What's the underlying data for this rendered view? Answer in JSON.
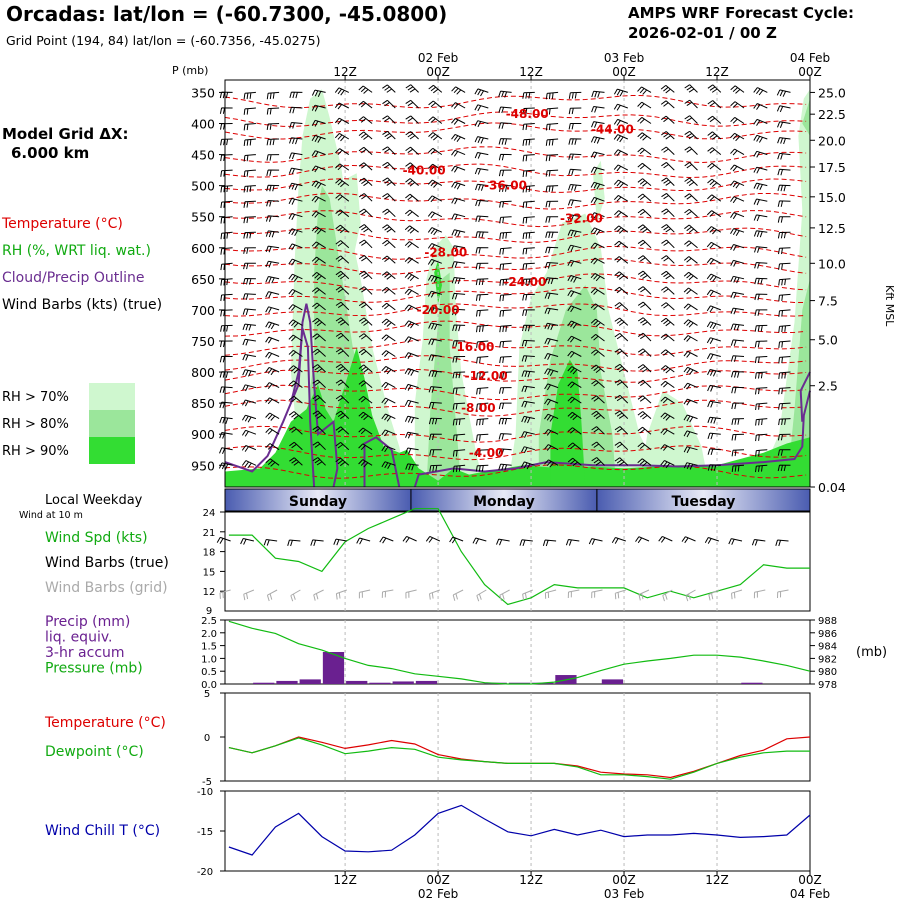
{
  "header": {
    "station": "Orcadas:",
    "latlon_label": "lat/lon = (-60.7300, -45.0800)",
    "grid_point": "Grid Point (194, 84) lat/lon = (-60.7356, -45.0275)",
    "cycle_label": "AMPS WRF Forecast Cycle:",
    "cycle_value": "2026-02-01 / 00  Z"
  },
  "left_panel": {
    "grid_spacing_label": "Model Grid ΔX:",
    "grid_spacing_value": "6.000 km",
    "legend_temperature": "Temperature (°C)",
    "legend_rh": "RH (%, WRT liq. wat.)",
    "legend_cloud": "Cloud/Precip Outline",
    "legend_wind": "Wind Barbs (kts) (true)",
    "rh_levels": [
      "RH > 70%",
      "RH > 80%",
      "RH > 90%"
    ]
  },
  "colors": {
    "rh70": "#cff7cf",
    "rh80": "#9be69b",
    "rh90": "#33dd33",
    "temperature": "#dd0000",
    "cloud_outline": "#6a2d90",
    "wind_speed": "#11bb11",
    "pressure": "#11bb11",
    "precip": "#6a2090",
    "dewpoint": "#11bb11",
    "wind_chill": "#0000aa",
    "grid_barbs": "#aaaaaa",
    "day_bar": "#8090c8"
  },
  "chart_data": [
    {
      "type": "heatmap",
      "title": "",
      "ylabel_left": "P (mb)",
      "ylabel_right": "Kft MSL",
      "pressure_ticks": [
        350,
        400,
        450,
        500,
        550,
        600,
        650,
        700,
        750,
        800,
        850,
        900,
        950
      ],
      "ylim": [
        330,
        985
      ],
      "height_ticks": [
        {
          "label": "25.0",
          "p": 350
        },
        {
          "label": "22.5",
          "p": 385
        },
        {
          "label": "20.0",
          "p": 427
        },
        {
          "label": "17.5",
          "p": 470
        },
        {
          "label": "15.0",
          "p": 518
        },
        {
          "label": "12.5",
          "p": 568
        },
        {
          "label": "10.0",
          "p": 625
        },
        {
          "label": "7.5",
          "p": 685
        },
        {
          "label": "5.0",
          "p": 748
        },
        {
          "label": "2.5",
          "p": 822
        },
        {
          "label": "0.04",
          "p": 985
        }
      ],
      "time_hours": [
        0,
        6,
        12,
        18,
        24,
        30,
        36,
        42,
        48,
        54,
        60,
        66,
        72
      ],
      "time_range_hours": [
        -3.5,
        72
      ],
      "top_time_labels": [
        {
          "hour": 12,
          "label": "12Z",
          "date": ""
        },
        {
          "hour": 24,
          "label": "00Z",
          "date": "02 Feb"
        },
        {
          "hour": 36,
          "label": "12Z",
          "date": ""
        },
        {
          "hour": 48,
          "label": "00Z",
          "date": "03 Feb"
        },
        {
          "hour": 60,
          "label": "12Z",
          "date": ""
        },
        {
          "hour": 72,
          "label": "00Z",
          "date": "04 Feb"
        }
      ],
      "temperature_labels": [
        {
          "label": "-48.00",
          "hour": 35.5,
          "p": 385
        },
        {
          "label": "-44.00",
          "hour": 46.5,
          "p": 410
        },
        {
          "label": "-40.00",
          "hour": 22.2,
          "p": 476
        },
        {
          "label": "-36.00",
          "hour": 32.7,
          "p": 500
        },
        {
          "label": "-32.00",
          "hour": 42.5,
          "p": 553
        },
        {
          "label": "-28.00",
          "hour": 25,
          "p": 608
        },
        {
          "label": "-24.00",
          "hour": 35.2,
          "p": 655
        },
        {
          "label": "-20.00",
          "hour": 24,
          "p": 700
        },
        {
          "label": "-16.00",
          "hour": 28.5,
          "p": 760
        },
        {
          "label": "-12.00",
          "hour": 30.2,
          "p": 806
        },
        {
          "label": "-8.00",
          "hour": 29.2,
          "p": 858
        },
        {
          "label": "-4.00",
          "hour": 30.2,
          "p": 930
        }
      ]
    },
    {
      "type": "line",
      "title": "",
      "top_label": "Local Weekday",
      "subtitle": "Wind at 10 m",
      "days": [
        "Sunday",
        "Monday",
        "Tuesday"
      ],
      "day_boundaries_hours": [
        -3.5,
        20.5,
        44.5,
        72
      ],
      "series_labels": [
        "Wind Spd (kts)",
        "Wind Barbs (true)",
        "Wind Barbs (grid)"
      ],
      "ylim": [
        9,
        24
      ],
      "yticks": [
        12,
        15,
        18,
        21,
        24
      ],
      "ytick_bottom_label": "9",
      "x_hours": [
        -3,
        0,
        3,
        6,
        9,
        12,
        15,
        18,
        21,
        24,
        27,
        30,
        33,
        36,
        39,
        42,
        45,
        48,
        51,
        54,
        57,
        60,
        63,
        66,
        69,
        72
      ],
      "series": [
        {
          "name": "Wind Spd (kts)",
          "values": [
            20.5,
            20.5,
            17,
            16.5,
            15,
            19.5,
            21.5,
            23,
            24.5,
            24.5,
            18,
            13,
            10,
            11,
            13,
            12.5,
            12.5,
            12.5,
            11,
            12,
            11,
            12,
            13,
            16,
            15.5,
            15.5
          ]
        }
      ]
    },
    {
      "type": "bar",
      "title": "",
      "series_labels": [
        "Precip (mm)",
        "liq. equiv.",
        "3-hr accum",
        "Pressure (mb)"
      ],
      "right_axis_label": "(mb)",
      "precip_ylim": [
        0,
        2.5
      ],
      "precip_yticks": [
        "0.0",
        "0.5",
        "1.0",
        "1.5",
        "2.0",
        "2.5"
      ],
      "pressure_ylim": [
        978,
        988
      ],
      "pressure_yticks": [
        978,
        980,
        982,
        984,
        986,
        988
      ],
      "precip_bars": [
        {
          "start": 0,
          "end": 3,
          "value": 0.05
        },
        {
          "start": 3,
          "end": 6,
          "value": 0.12
        },
        {
          "start": 6,
          "end": 9,
          "value": 0.18
        },
        {
          "start": 9,
          "end": 12,
          "value": 1.25
        },
        {
          "start": 12,
          "end": 15,
          "value": 0.12
        },
        {
          "start": 15,
          "end": 18,
          "value": 0.05
        },
        {
          "start": 18,
          "end": 21,
          "value": 0.1
        },
        {
          "start": 21,
          "end": 24,
          "value": 0.12
        },
        {
          "start": 30,
          "end": 33,
          "value": 0.05
        },
        {
          "start": 33,
          "end": 36,
          "value": 0.05
        },
        {
          "start": 36,
          "end": 39,
          "value": 0.05
        },
        {
          "start": 39,
          "end": 42,
          "value": 0.35
        },
        {
          "start": 45,
          "end": 48,
          "value": 0.18
        },
        {
          "start": 63,
          "end": 66,
          "value": 0.05
        }
      ],
      "pressure_x_hours": [
        -3,
        0,
        3,
        6,
        9,
        12,
        15,
        18,
        21,
        24,
        27,
        30,
        33,
        36,
        39,
        42,
        45,
        48,
        51,
        54,
        57,
        60,
        63,
        66,
        69,
        72
      ],
      "pressure_values": [
        987.8,
        986.7,
        985.9,
        984.3,
        983.3,
        982.0,
        980.9,
        980.4,
        979.6,
        979.2,
        978.8,
        978.2,
        978.0,
        978.0,
        978.3,
        979.0,
        980.1,
        981.1,
        981.6,
        982.0,
        982.5,
        982.5,
        982.2,
        981.6,
        980.9,
        980.0
      ]
    },
    {
      "type": "line",
      "title": "",
      "series_labels": [
        "Temperature (°C)",
        "Dewpoint (°C)"
      ],
      "ylim": [
        -5,
        5
      ],
      "yticks": [
        5,
        0,
        -5
      ],
      "x_hours": [
        -3,
        0,
        3,
        6,
        9,
        12,
        15,
        18,
        21,
        24,
        27,
        30,
        33,
        36,
        39,
        42,
        45,
        48,
        51,
        54,
        57,
        60,
        63,
        66,
        69,
        72
      ],
      "series": [
        {
          "name": "Temperature (°C)",
          "values": [
            -1.2,
            -1.8,
            -1.0,
            0.0,
            -0.6,
            -1.3,
            -0.9,
            -0.4,
            -0.8,
            -2.0,
            -2.5,
            -2.8,
            -3.0,
            -3.0,
            -3.0,
            -3.3,
            -4.0,
            -4.2,
            -4.3,
            -4.6,
            -3.9,
            -3.0,
            -2.1,
            -1.5,
            -0.2,
            0.0
          ]
        },
        {
          "name": "Dewpoint (°C)",
          "values": [
            -1.2,
            -1.8,
            -1.0,
            -0.1,
            -0.9,
            -1.9,
            -1.6,
            -1.2,
            -1.4,
            -2.3,
            -2.6,
            -2.8,
            -3.0,
            -3.0,
            -3.0,
            -3.4,
            -4.3,
            -4.3,
            -4.5,
            -4.8,
            -4.0,
            -3.0,
            -2.3,
            -1.8,
            -1.6,
            -1.6
          ]
        }
      ]
    },
    {
      "type": "line",
      "title": "",
      "series_labels": [
        "Wind Chill T (°C)"
      ],
      "ylim": [
        -20,
        -10
      ],
      "yticks": [
        -10,
        -15,
        -20
      ],
      "x_hours": [
        -3,
        0,
        3,
        6,
        9,
        12,
        15,
        18,
        21,
        24,
        27,
        30,
        33,
        36,
        39,
        42,
        45,
        48,
        51,
        54,
        57,
        60,
        63,
        66,
        69,
        72
      ],
      "series": [
        {
          "name": "Wind Chill T (°C)",
          "values": [
            -17,
            -18,
            -14.5,
            -12.8,
            -15.7,
            -17.5,
            -17.6,
            -17.4,
            -15.5,
            -12.8,
            -11.8,
            -13.5,
            -15.1,
            -15.6,
            -14.8,
            -15.5,
            -14.9,
            -15.7,
            -15.5,
            -15.5,
            -15.3,
            -15.5,
            -15.8,
            -15.7,
            -15.5,
            -13.0
          ]
        }
      ]
    }
  ],
  "bottom_axis": [
    {
      "hour": 12,
      "label": "12Z",
      "date": ""
    },
    {
      "hour": 24,
      "label": "00Z",
      "date": "02 Feb"
    },
    {
      "hour": 36,
      "label": "12Z",
      "date": ""
    },
    {
      "hour": 48,
      "label": "00Z",
      "date": "03 Feb"
    },
    {
      "hour": 60,
      "label": "12Z",
      "date": ""
    },
    {
      "hour": 72,
      "label": "00Z",
      "date": "04 Feb"
    }
  ]
}
